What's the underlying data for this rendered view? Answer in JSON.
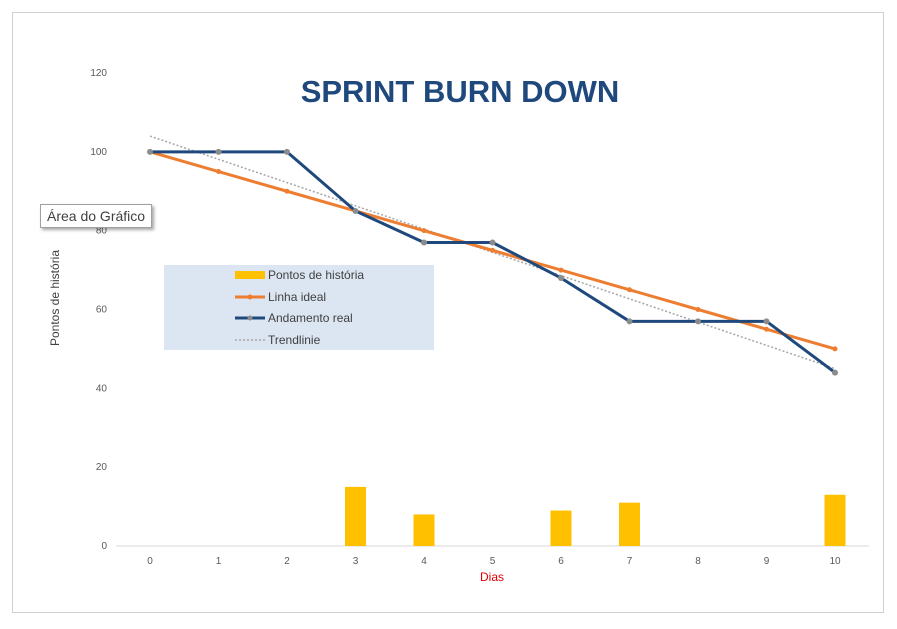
{
  "tooltip": "Área do Gráfico",
  "chart_data": {
    "type": "line",
    "title": "SPRINT BURN DOWN",
    "xlabel": "Dias",
    "ylabel": "Pontos de história",
    "x": [
      0,
      1,
      2,
      3,
      4,
      5,
      6,
      7,
      8,
      9,
      10
    ],
    "ylim": [
      0,
      120
    ],
    "yticks": [
      0,
      20,
      40,
      60,
      80,
      100,
      120
    ],
    "grid": false,
    "legend_position": "center-left",
    "series": [
      {
        "name": "Pontos de história",
        "kind": "bar",
        "color": "#ffc000",
        "values": [
          null,
          null,
          null,
          15,
          8,
          null,
          9,
          11,
          null,
          null,
          13
        ]
      },
      {
        "name": "Linha ideal",
        "kind": "line",
        "color": "#ed7d31",
        "values": [
          100,
          95,
          90,
          85,
          80,
          75,
          70,
          65,
          60,
          55,
          50
        ]
      },
      {
        "name": "Andamento real",
        "kind": "line",
        "color": "#1f497d",
        "values": [
          100,
          100,
          100,
          85,
          77,
          77,
          68,
          57,
          57,
          57,
          44
        ]
      },
      {
        "name": "Trendlinie",
        "kind": "trendline",
        "color": "#a6a6a6",
        "values": [
          104,
          98,
          92,
          86,
          81,
          75,
          69,
          63,
          57,
          51,
          45
        ]
      }
    ]
  }
}
